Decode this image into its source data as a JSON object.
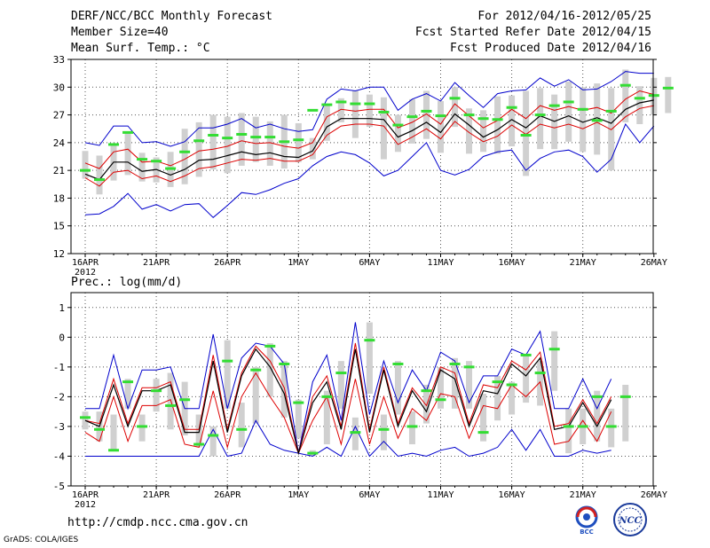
{
  "header": {
    "title": "DERF/NCC/BCC Monthly Forecast",
    "member_size": "Member Size=40",
    "variable": "Mean Surf. Temp.: °C",
    "forecast_period": "For 2012/04/16-2012/05/25",
    "started_refer": "Fcst Started Refer Date 2012/04/15",
    "produced": "Fcst Produced Date 2012/04/16"
  },
  "precip_label": "Prec.: log(mm/d)",
  "footer": {
    "url": "http://cmdp.ncc.cma.gov.cn",
    "grads": "GrADS: COLA/IGES",
    "logo_bcc": "BCC",
    "logo_ncc": "NCC"
  },
  "colors": {
    "max_min": "#0000cc",
    "spread": "#dd0000",
    "mean": "#000000",
    "observed": "#33dd33",
    "box": "#d0d0d0",
    "grid": "#555555"
  },
  "chart_data": [
    {
      "type": "line",
      "title": "Mean Surf. Temp.: °C",
      "x_tick_labels": [
        "16APR",
        "21APR",
        "26APR",
        "1MAY",
        "6MAY",
        "11MAY",
        "16MAY",
        "21MAY",
        "26MAY"
      ],
      "year_label": "2012",
      "ylim": [
        12,
        33
      ],
      "y_ticks": [
        12,
        15,
        18,
        21,
        24,
        27,
        30,
        33
      ],
      "grid": true,
      "series": [
        {
          "name": "max",
          "values": [
            24.0,
            23.7,
            25.8,
            25.8,
            24.0,
            24.1,
            23.6,
            24.1,
            25.6,
            25.6,
            26.0,
            26.6,
            25.6,
            26.0,
            25.5,
            25.2,
            25.4,
            28.7,
            29.8,
            29.6,
            30.0,
            30.0,
            27.5,
            28.7,
            29.3,
            28.5,
            30.5,
            29.1,
            27.8,
            29.3,
            29.6,
            29.7,
            31.0,
            30.1,
            30.8,
            29.7,
            29.8,
            30.6,
            31.7,
            31.5,
            31.5
          ]
        },
        {
          "name": "upper",
          "values": [
            21.8,
            21.2,
            23.0,
            23.3,
            21.9,
            22.0,
            21.5,
            22.2,
            23.1,
            23.3,
            23.6,
            24.2,
            23.9,
            24.0,
            23.6,
            23.4,
            24.0,
            26.8,
            27.6,
            27.4,
            27.6,
            27.6,
            25.6,
            26.2,
            27.1,
            26.0,
            28.2,
            26.9,
            25.6,
            26.4,
            27.6,
            26.6,
            28.0,
            27.5,
            27.9,
            27.5,
            27.8,
            27.2,
            28.7,
            29.6,
            29.2
          ]
        },
        {
          "name": "mean",
          "values": [
            20.6,
            20.0,
            21.9,
            21.9,
            20.9,
            21.1,
            20.5,
            21.1,
            22.1,
            22.2,
            22.6,
            23.0,
            22.7,
            22.9,
            22.5,
            22.4,
            23.1,
            25.7,
            26.6,
            26.6,
            26.6,
            26.5,
            24.6,
            25.3,
            26.2,
            25.1,
            27.1,
            25.9,
            24.6,
            25.4,
            26.5,
            25.6,
            26.9,
            26.3,
            26.9,
            26.2,
            26.7,
            26.1,
            27.6,
            28.3,
            28.6
          ]
        },
        {
          "name": "lower",
          "values": [
            20.2,
            19.3,
            20.8,
            21.0,
            20.1,
            20.4,
            19.8,
            20.4,
            21.2,
            21.4,
            21.8,
            22.2,
            22.1,
            22.3,
            22.0,
            22.0,
            22.7,
            24.8,
            25.8,
            26.0,
            26.0,
            25.8,
            23.8,
            24.6,
            25.5,
            24.4,
            26.3,
            25.1,
            24.1,
            24.7,
            25.9,
            24.9,
            26.0,
            25.6,
            26.0,
            25.5,
            26.2,
            25.4,
            26.8,
            27.7,
            28.0
          ]
        },
        {
          "name": "min",
          "values": [
            16.2,
            16.3,
            17.1,
            18.5,
            16.8,
            17.3,
            16.6,
            17.3,
            17.4,
            15.9,
            17.2,
            18.6,
            18.4,
            18.9,
            19.6,
            20.1,
            21.5,
            22.5,
            23.0,
            22.7,
            21.8,
            20.4,
            21.0,
            22.5,
            24.0,
            21.0,
            20.5,
            21.1,
            22.5,
            23.0,
            23.2,
            21.0,
            22.3,
            23.0,
            23.2,
            22.5,
            20.8,
            22.2,
            26.0,
            24.0,
            25.8
          ]
        },
        {
          "name": "observed",
          "values": [
            21.0,
            20.0,
            23.8,
            25.1,
            22.2,
            22.0,
            21.2,
            23.0,
            24.2,
            24.8,
            24.5,
            24.9,
            24.6,
            24.6,
            24.1,
            24.3,
            27.5,
            28.1,
            28.4,
            28.2,
            28.2,
            27.3,
            25.9,
            26.8,
            27.4,
            26.9,
            28.8,
            27.0,
            26.6,
            26.5,
            27.8,
            24.8,
            27.0,
            28.0,
            28.4,
            27.6,
            26.4,
            27.4,
            30.2,
            28.8,
            29.1,
            29.9
          ]
        },
        {
          "name": "box_top",
          "values": [
            23.1,
            22.6,
            23.8,
            25.0,
            22.9,
            22.4,
            23.0,
            25.5,
            26.2,
            27.0,
            26.8,
            27.2,
            26.8,
            26.3,
            27.0,
            26.1,
            24.5,
            28.0,
            28.8,
            29.6,
            29.2,
            28.9,
            27.0,
            28.7,
            29.6,
            28.5,
            30.0,
            27.7,
            27.5,
            29.0,
            29.1,
            29.6,
            29.9,
            29.2,
            30.6,
            30.0,
            30.4,
            29.9,
            31.9,
            30.1,
            31.0,
            31.1
          ]
        },
        {
          "name": "box_bottom",
          "values": [
            20.1,
            18.4,
            19.9,
            20.5,
            19.8,
            19.7,
            19.2,
            19.5,
            20.3,
            21.1,
            20.7,
            21.5,
            21.9,
            21.5,
            21.2,
            21.9,
            22.2,
            24.2,
            26.2,
            24.5,
            25.7,
            22.2,
            23.0,
            23.9,
            24.4,
            22.9,
            25.7,
            22.8,
            23.0,
            22.8,
            23.6,
            20.4,
            23.3,
            23.3,
            24.1,
            23.0,
            22.7,
            21.0,
            26.2,
            26.0,
            27.0,
            27.2
          ]
        }
      ]
    },
    {
      "type": "line",
      "title": "Prec.: log(mm/d)",
      "x_tick_labels": [
        "16APR",
        "21APR",
        "26APR",
        "1MAY",
        "6MAY",
        "11MAY",
        "16MAY",
        "21MAY",
        "26MAY"
      ],
      "year_label": "2012",
      "ylim": [
        -5,
        1.5
      ],
      "y_ticks": [
        -5,
        -4,
        -3,
        -2,
        -1,
        0,
        1
      ],
      "grid": true,
      "series": [
        {
          "name": "max",
          "values": [
            -2.4,
            -2.4,
            -0.6,
            -2.4,
            -1.1,
            -1.1,
            -1.0,
            -2.4,
            -2.4,
            0.1,
            -2.4,
            -0.7,
            -0.2,
            -0.3,
            -0.9,
            -3.9,
            -1.5,
            -0.6,
            -2.8,
            0.5,
            -2.6,
            -0.8,
            -2.2,
            -1.1,
            -1.8,
            -0.5,
            -0.8,
            -2.2,
            -1.3,
            -1.3,
            -0.4,
            -0.6,
            0.2,
            -2.4,
            -2.4,
            -1.4,
            -2.4,
            -1.4
          ]
        },
        {
          "name": "upper",
          "values": [
            -2.8,
            -2.9,
            -1.4,
            -2.9,
            -1.7,
            -1.7,
            -1.5,
            -3.1,
            -3.1,
            -0.6,
            -3.1,
            -1.2,
            -0.3,
            -0.8,
            -1.7,
            -3.9,
            -2.0,
            -1.3,
            -3.0,
            -0.2,
            -3.1,
            -1.0,
            -2.9,
            -1.7,
            -2.3,
            -1.0,
            -1.2,
            -2.9,
            -1.6,
            -1.7,
            -0.8,
            -1.1,
            -0.5,
            -3.0,
            -2.9,
            -2.1,
            -2.9,
            -2.0
          ]
        },
        {
          "name": "mean",
          "values": [
            -2.8,
            -3.0,
            -1.6,
            -3.0,
            -1.8,
            -1.8,
            -1.6,
            -3.2,
            -3.2,
            -0.8,
            -3.2,
            -1.3,
            -0.4,
            -1.0,
            -1.9,
            -3.9,
            -2.2,
            -1.5,
            -3.1,
            -0.4,
            -3.2,
            -1.1,
            -3.0,
            -1.8,
            -2.5,
            -1.1,
            -1.4,
            -3.0,
            -1.8,
            -1.9,
            -0.9,
            -1.3,
            -0.7,
            -3.1,
            -3.0,
            -2.2,
            -3.0,
            -2.1
          ]
        },
        {
          "name": "lower",
          "values": [
            -3.2,
            -3.5,
            -2.0,
            -3.5,
            -2.3,
            -2.3,
            -2.1,
            -3.6,
            -3.7,
            -1.8,
            -3.7,
            -2.0,
            -1.2,
            -2.0,
            -2.7,
            -3.9,
            -2.8,
            -2.0,
            -3.6,
            -1.4,
            -3.6,
            -2.0,
            -3.4,
            -2.4,
            -2.8,
            -1.9,
            -2.0,
            -3.4,
            -2.3,
            -2.4,
            -1.6,
            -2.0,
            -1.5,
            -3.6,
            -3.5,
            -2.8,
            -3.5,
            -2.5
          ]
        },
        {
          "name": "min",
          "values": [
            -4.0,
            -4.0,
            -4.0,
            -4.0,
            -4.0,
            -4.0,
            -4.0,
            -4.0,
            -4.0,
            -3.1,
            -4.0,
            -3.9,
            -2.8,
            -3.6,
            -3.8,
            -3.9,
            -4.0,
            -3.7,
            -4.0,
            -3.0,
            -4.0,
            -3.5,
            -4.0,
            -3.9,
            -4.0,
            -3.8,
            -3.7,
            -4.0,
            -3.9,
            -3.7,
            -3.1,
            -3.8,
            -3.1,
            -4.0,
            -4.0,
            -3.8,
            -3.9,
            -3.8
          ]
        },
        {
          "name": "observed",
          "values": [
            -2.7,
            -3.1,
            -3.8,
            -1.5,
            -3.0,
            -1.8,
            -2.3,
            -2.1,
            -3.6,
            -3.3,
            -0.8,
            -3.1,
            -1.1,
            -0.3,
            -0.9,
            -2.2,
            -3.9,
            -2.0,
            -1.2,
            -3.2,
            -0.1,
            -3.1,
            -0.9,
            -3.0,
            -1.8,
            -2.1,
            -0.9,
            -1.0,
            -3.2,
            -1.5,
            -1.6,
            -0.6,
            -1.2,
            -0.4,
            -3.0,
            -3.0,
            -2.0,
            -3.0,
            -2.0
          ]
        },
        {
          "name": "box_top",
          "values": [
            -2.5,
            -2.5,
            -2.6,
            -1.4,
            -2.6,
            -1.4,
            -1.2,
            -1.5,
            -2.6,
            -3.0,
            -0.1,
            -2.2,
            -1.0,
            -0.2,
            -0.8,
            -2.1,
            -3.8,
            -1.8,
            -0.8,
            -2.7,
            0.5,
            -2.6,
            -0.8,
            -2.5,
            -1.6,
            -1.0,
            -0.7,
            -0.8,
            -1.9,
            -1.3,
            -1.5,
            -0.6,
            -0.8,
            0.2,
            -2.4,
            -2.4,
            -1.8,
            -2.4,
            -1.6
          ]
        },
        {
          "name": "box_bottom",
          "values": [
            -3.1,
            -3.5,
            -3.8,
            -2.4,
            -3.5,
            -2.5,
            -3.1,
            -3.3,
            -3.7,
            -4.0,
            -2.4,
            -3.7,
            -2.9,
            -2.0,
            -2.7,
            -3.4,
            -4.0,
            -3.6,
            -2.4,
            -3.8,
            -1.9,
            -3.8,
            -2.6,
            -3.6,
            -2.9,
            -2.4,
            -2.4,
            -2.4,
            -3.5,
            -2.8,
            -2.6,
            -2.2,
            -2.3,
            -1.8,
            -3.9,
            -3.6,
            -3.5,
            -3.7,
            -3.5
          ]
        }
      ]
    }
  ]
}
